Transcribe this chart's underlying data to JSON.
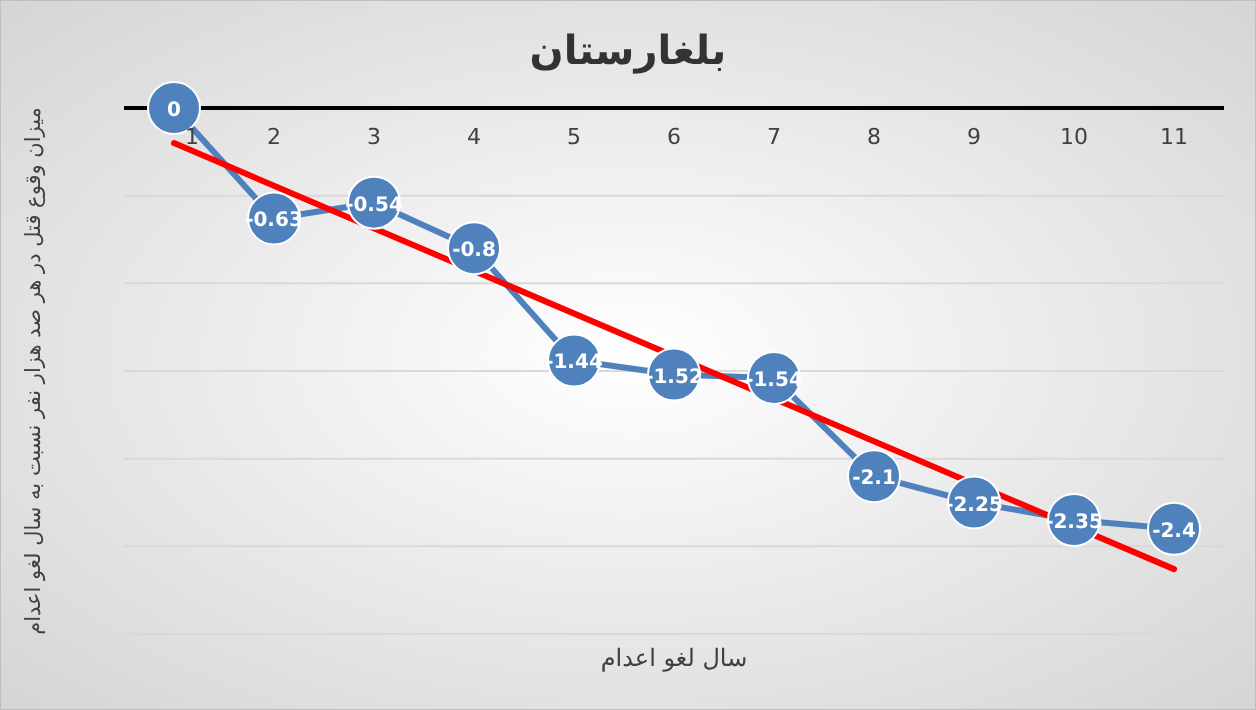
{
  "chart_data": {
    "type": "line",
    "title": "بلغارستان",
    "xlabel": "سال لغو اعدام",
    "ylabel": "میزان وقوع قتل در هر صد هزار نفر نسبت به سال لغو اعدام",
    "categories": [
      "1",
      "2",
      "3",
      "4",
      "5",
      "6",
      "7",
      "8",
      "9",
      "10",
      "11"
    ],
    "series": [
      {
        "color": "#4f81bd",
        "values": [
          0,
          -0.63,
          -0.54,
          -0.8,
          -1.44,
          -1.52,
          -1.54,
          -2.1,
          -2.25,
          -2.35,
          -2.4
        ],
        "marker": "circle",
        "data_labels": true
      },
      {
        "type": "line",
        "color": "#ff0000",
        "x": [
          "1",
          "11"
        ],
        "values": [
          -0.2,
          -2.63
        ],
        "marker": "none"
      }
    ],
    "ylim": [
      -3,
      0
    ],
    "yticks": [
      {
        "value": 0,
        "label": null
      },
      {
        "value": -0.5,
        "label": null
      },
      {
        "value": -1,
        "label": null
      },
      {
        "value": -1.5,
        "label": null
      },
      {
        "value": -2,
        "label": null
      },
      {
        "value": -2.5,
        "label": null
      },
      {
        "value": -3,
        "label": null
      }
    ],
    "tick_labels": "x",
    "grid": "y"
  }
}
